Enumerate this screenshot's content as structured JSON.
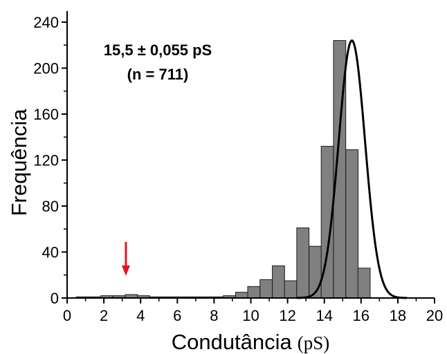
{
  "chart_data": {
    "type": "bar",
    "xlabel": "Condutância",
    "xlabel_unit": "(pS)",
    "ylabel": "Frequência",
    "xlim": [
      0,
      20
    ],
    "ylim": [
      0,
      240
    ],
    "xticks": [
      "0",
      "2",
      "4",
      "6",
      "8",
      "10",
      "12",
      "14",
      "16",
      "18",
      "20"
    ],
    "yticks": [
      "0",
      "40",
      "80",
      "120",
      "160",
      "200",
      "240"
    ],
    "bin_width": 0.667,
    "bins_x": [
      0.5,
      1.17,
      1.83,
      2.5,
      3.17,
      3.83,
      4.5,
      5.17,
      5.83,
      6.5,
      7.17,
      7.83,
      8.5,
      9.17,
      9.83,
      10.5,
      11.17,
      11.83,
      12.5,
      13.17,
      13.83,
      14.5,
      15.17,
      15.83,
      16.5,
      17.17
    ],
    "values": [
      1,
      1,
      2,
      2,
      3,
      2,
      1,
      1,
      1,
      1,
      1,
      1,
      2,
      5,
      10,
      16,
      28,
      15,
      61,
      45,
      132,
      224,
      129,
      26,
      0,
      0
    ],
    "fit": {
      "type": "gaussian",
      "center": 15.5,
      "amplitude": 224,
      "sigma": 0.72,
      "x_range": [
        12.5,
        18.5
      ]
    },
    "annotations": {
      "line1": "15,5 ± 0,055 pS",
      "line2": "(n = 711)"
    },
    "arrow": {
      "x": 3.2,
      "color": "#e8141c"
    },
    "colors": {
      "bar_fill": "#808080",
      "bar_stroke": "#1a1a1a",
      "fit": "#000000"
    },
    "grid": false
  }
}
